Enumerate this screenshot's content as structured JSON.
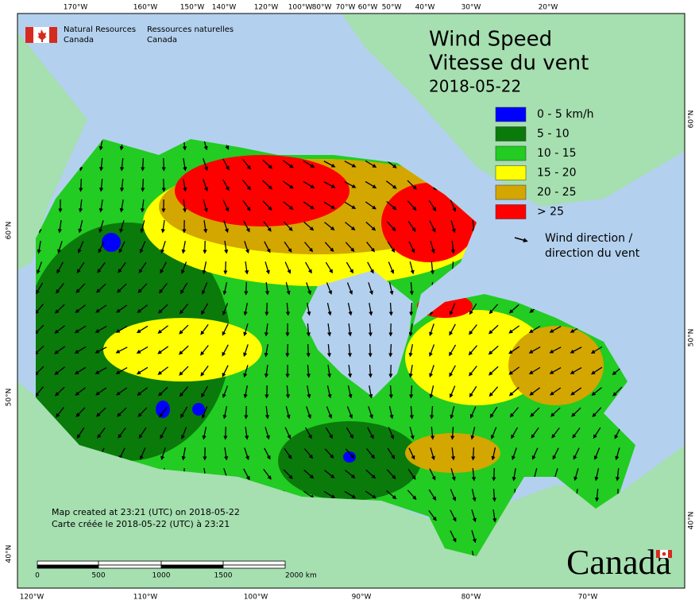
{
  "header": {
    "org_en": [
      "Natural Resources",
      "Canada"
    ],
    "org_fr": [
      "Ressources naturelles",
      "Canada"
    ]
  },
  "title": {
    "en": "Wind Speed",
    "fr": "Vitesse du vent",
    "date": "2018-05-22"
  },
  "legend": {
    "items": [
      {
        "label": "0 - 5 km/h",
        "color": "#0000ff"
      },
      {
        "label": "5 - 10",
        "color": "#0a7a0a"
      },
      {
        "label": "10 - 15",
        "color": "#22cc22"
      },
      {
        "label": "15 - 20",
        "color": "#ffff00"
      },
      {
        "label": "20 - 25",
        "color": "#d4a600"
      },
      {
        "label": "> 25",
        "color": "#ff0000"
      }
    ],
    "arrow_label": [
      "Wind direction /",
      "direction du vent"
    ]
  },
  "graticule": {
    "top": [
      "170°W",
      "160°W",
      "150°W",
      "140°W",
      "120°W",
      "100°W",
      "80°W",
      "70°W",
      "60°W",
      "50°W",
      "40°W",
      "30°W",
      "20°W"
    ],
    "bottom": [
      "120°W",
      "110°W",
      "100°W",
      "90°W",
      "80°W",
      "70°W"
    ],
    "left": [
      "60°N",
      "50°N",
      "40°N"
    ],
    "right": [
      "60°N",
      "50°N",
      "40°N"
    ]
  },
  "credits": [
    "Map created at 23:21 (UTC) on 2018-05-22",
    "Carte créée le 2018-05-22 (UTC) à 23:21"
  ],
  "scale_bar": {
    "labels": [
      "0",
      "500",
      "1000",
      "1500",
      "2000 km"
    ]
  },
  "wordmark": "Canada"
}
